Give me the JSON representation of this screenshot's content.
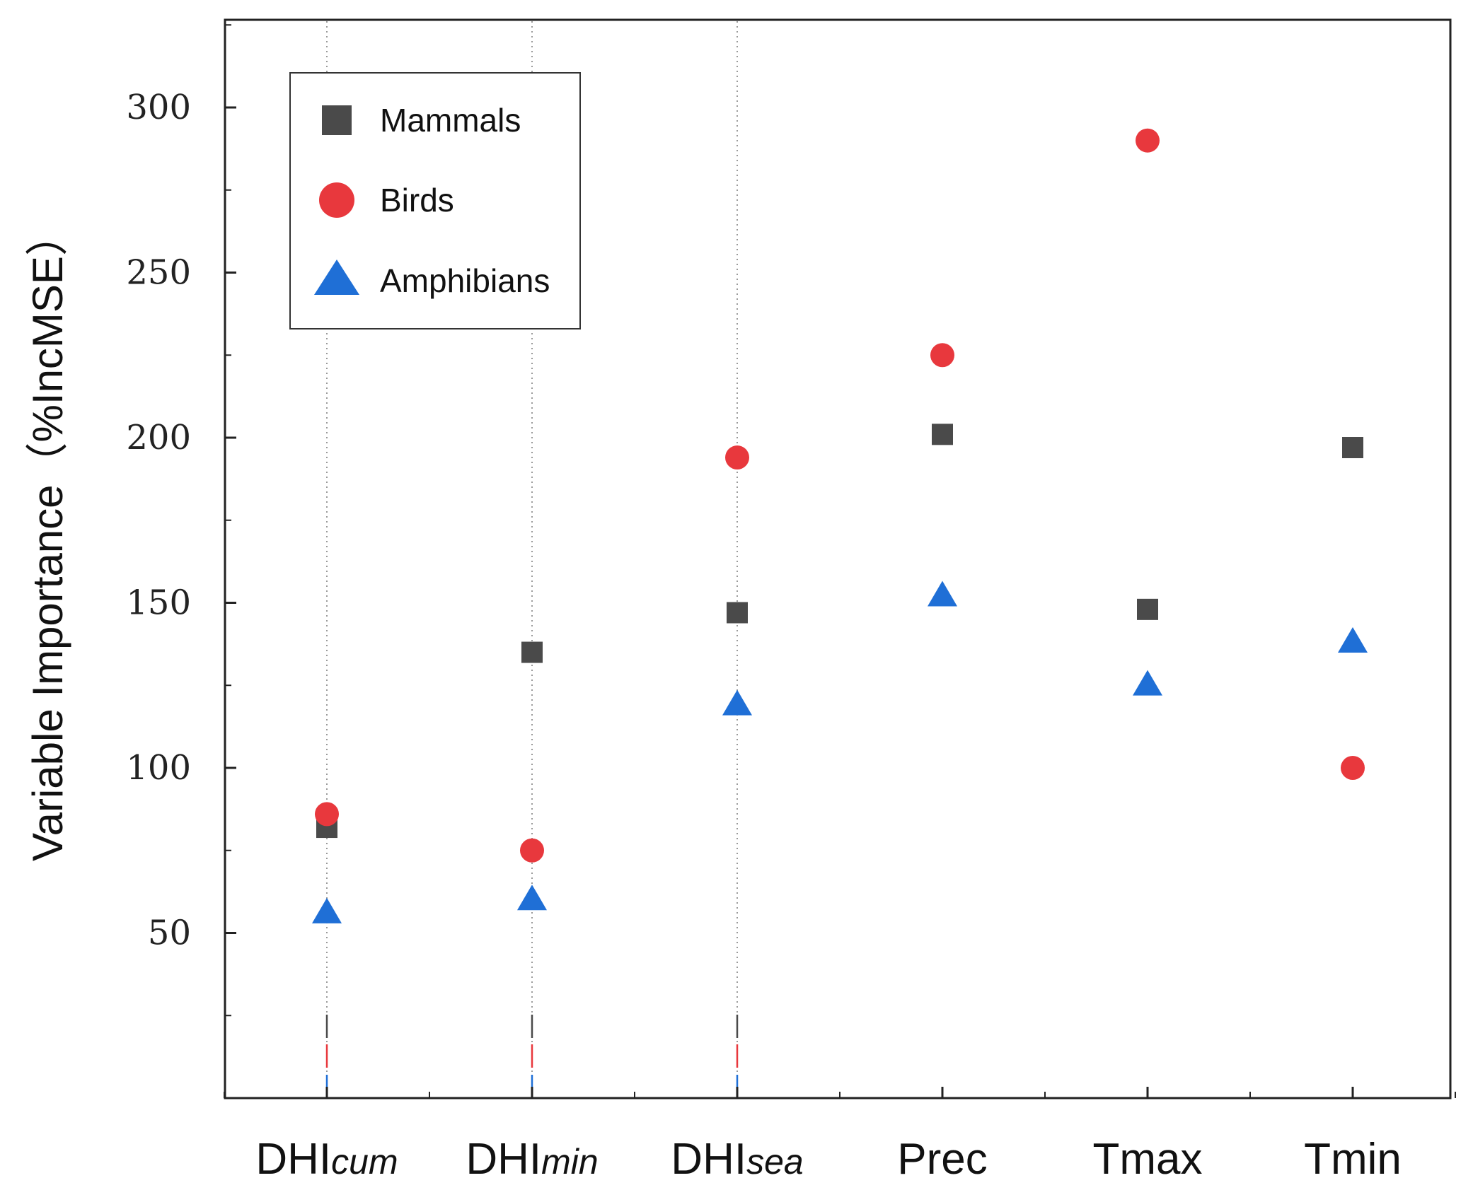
{
  "chart_data": {
    "type": "scatter",
    "title": "",
    "xlabel": "",
    "ylabel": "Variable Importance（%IncMSE）",
    "ylim": [
      0,
      325
    ],
    "yticks": [
      50,
      100,
      150,
      200,
      250,
      300
    ],
    "categories": [
      {
        "main": "DHI",
        "sub": "cum"
      },
      {
        "main": "DHI",
        "sub": "min"
      },
      {
        "main": "DHI",
        "sub": "sea"
      },
      {
        "main": "Prec",
        "sub": ""
      },
      {
        "main": "Tmax",
        "sub": ""
      },
      {
        "main": "Tmin",
        "sub": ""
      }
    ],
    "series": [
      {
        "name": "Mammals",
        "marker": "square",
        "color": "#4a4a4a",
        "values": [
          82,
          135,
          147,
          201,
          148,
          197
        ]
      },
      {
        "name": "Birds",
        "marker": "circle",
        "color": "#e8383d",
        "values": [
          86,
          75,
          194,
          225,
          290,
          100
        ]
      },
      {
        "name": "Amphibians",
        "marker": "triangle",
        "color": "#1f6fd6",
        "values": [
          56,
          60,
          119,
          152,
          125,
          138
        ]
      }
    ],
    "dotted_guides_categories": [
      0,
      1,
      2
    ],
    "legend_position": "top-left"
  }
}
